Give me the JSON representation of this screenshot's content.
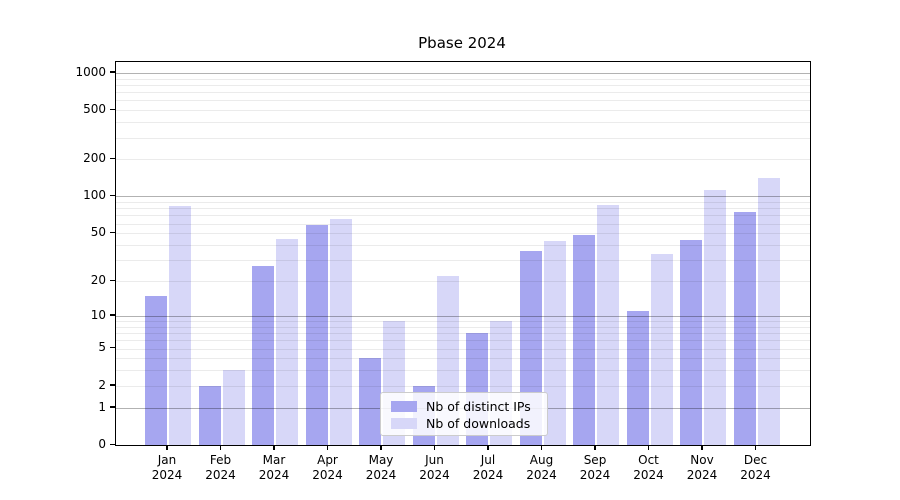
{
  "chart_data": {
    "type": "bar",
    "title": "Pbase 2024",
    "categories": [
      "Jan 2024",
      "Feb 2024",
      "Mar 2024",
      "Apr 2024",
      "May 2024",
      "Jun 2024",
      "Jul 2024",
      "Aug 2024",
      "Sep 2024",
      "Oct 2024",
      "Nov 2024",
      "Dec 2024"
    ],
    "months": [
      "Jan",
      "Feb",
      "Mar",
      "Apr",
      "May",
      "Jun",
      "Jul",
      "Aug",
      "Sep",
      "Oct",
      "Nov",
      "Dec"
    ],
    "year": "2024",
    "series": [
      {
        "name": "Nb of distinct IPs",
        "color": "#a6a6f0",
        "values": [
          15,
          2,
          27,
          58,
          4,
          2,
          7,
          36,
          48,
          11,
          44,
          74
        ]
      },
      {
        "name": "Nb of downloads",
        "color": "#d7d7f8",
        "values": [
          84,
          3,
          45,
          66,
          9,
          22,
          9,
          43,
          86,
          34,
          112,
          140
        ]
      }
    ],
    "xlabel": "",
    "ylabel": "",
    "yscale": "log1p",
    "ylim": [
      0,
      1224
    ],
    "yticks": [
      0,
      1,
      2,
      5,
      10,
      20,
      50,
      100,
      200,
      500,
      1000
    ],
    "grid": "horizontal majors at 1,10,100,1000 with faint log minors",
    "legend_position": "inside lower-center",
    "colors": {
      "axis": "#000000",
      "major_grid": "#b3b3b3",
      "minor_grid": "#e9e9e9",
      "background": "#ffffff"
    }
  }
}
